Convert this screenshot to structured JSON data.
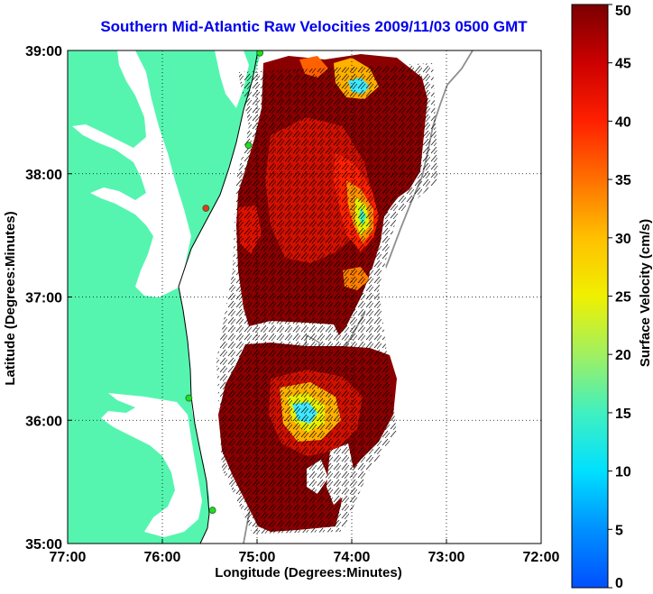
{
  "title": "Southern Mid-Atlantic Raw Velocities 2009/11/03 0500 GMT",
  "map": {
    "xlabel": "Longitude (Degrees:Minutes)",
    "ylabel": "Latitude (Degrees:Minutes)",
    "x_ticks": [
      "77:00",
      "76:00",
      "75:00",
      "74:00",
      "73:00",
      "72:00"
    ],
    "y_ticks": [
      "39:00",
      "38:00",
      "37:00",
      "36:00",
      "35:00"
    ],
    "lon_range": [
      -77,
      -72
    ],
    "lat_range": [
      35,
      39
    ],
    "land_color": "#55f5b0",
    "grid": "dotted"
  },
  "colorbar": {
    "label": "Surface Velocity (cm/s)",
    "ticks": [
      "0",
      "5",
      "10",
      "15",
      "20",
      "25",
      "30",
      "35",
      "40",
      "45",
      "50"
    ],
    "range": [
      0,
      50
    ]
  },
  "stations": [
    {
      "lon": -74.97,
      "lat": 38.98,
      "color": "#22dd22"
    },
    {
      "lon": -75.09,
      "lat": 38.23,
      "color": "#22dd22"
    },
    {
      "lon": -75.54,
      "lat": 37.72,
      "color": "#ee3322"
    },
    {
      "lon": -75.72,
      "lat": 36.18,
      "color": "#22dd22"
    },
    {
      "lon": -75.47,
      "lat": 35.27,
      "color": "#22dd22"
    }
  ]
}
